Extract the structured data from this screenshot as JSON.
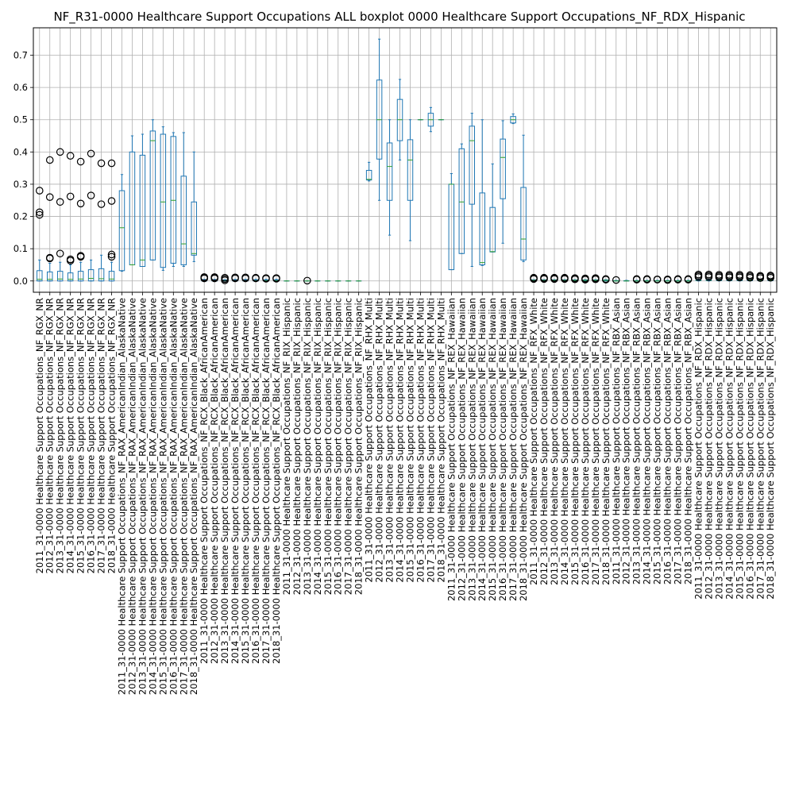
{
  "chart_data": {
    "type": "boxplot",
    "title": "NF_R31-0000 Healthcare Support Occupations ALL boxplot 0000 Healthcare Support Occupations_NF_RDX_Hispanic",
    "xlabel": "",
    "ylabel": "",
    "ylim": [
      -0.035,
      0.785
    ],
    "yticks": [
      "0.0",
      "0.1",
      "0.2",
      "0.3",
      "0.4",
      "0.5",
      "0.6",
      "0.7"
    ],
    "grid": true,
    "categories": [
      "2011_31-0000 Healthcare Support Occupations_NF_RGX_NR",
      "2012_31-0000 Healthcare Support Occupations_NF_RGX_NR",
      "2013_31-0000 Healthcare Support Occupations_NF_RGX_NR",
      "2014_31-0000 Healthcare Support Occupations_NF_RGX_NR",
      "2015_31-0000 Healthcare Support Occupations_NF_RGX_NR",
      "2016_31-0000 Healthcare Support Occupations_NF_RGX_NR",
      "2017_31-0000 Healthcare Support Occupations_NF_RGX_NR",
      "2018_31-0000 Healthcare Support Occupations_NF_RGX_NR",
      "2011_31-0000 Healthcare Support Occupations_NF_RAX_AmericanIndian_AlaskaNative",
      "2012_31-0000 Healthcare Support Occupations_NF_RAX_AmericanIndian_AlaskaNative",
      "2013_31-0000 Healthcare Support Occupations_NF_RAX_AmericanIndian_AlaskaNative",
      "2014_31-0000 Healthcare Support Occupations_NF_RAX_AmericanIndian_AlaskaNative",
      "2015_31-0000 Healthcare Support Occupations_NF_RAX_AmericanIndian_AlaskaNative",
      "2016_31-0000 Healthcare Support Occupations_NF_RAX_AmericanIndian_AlaskaNative",
      "2017_31-0000 Healthcare Support Occupations_NF_RAX_AmericanIndian_AlaskaNative",
      "2018_31-0000 Healthcare Support Occupations_NF_RAX_AmericanIndian_AlaskaNative",
      "2011_31-0000 Healthcare Support Occupations_NF_RCX_Black_AfricanAmerican",
      "2012_31-0000 Healthcare Support Occupations_NF_RCX_Black_AfricanAmerican",
      "2013_31-0000 Healthcare Support Occupations_NF_RCX_Black_AfricanAmerican",
      "2014_31-0000 Healthcare Support Occupations_NF_RCX_Black_AfricanAmerican",
      "2015_31-0000 Healthcare Support Occupations_NF_RCX_Black_AfricanAmerican",
      "2016_31-0000 Healthcare Support Occupations_NF_RCX_Black_AfricanAmerican",
      "2017_31-0000 Healthcare Support Occupations_NF_RCX_Black_AfricanAmerican",
      "2018_31-0000 Healthcare Support Occupations_NF_RCX_Black_AfricanAmerican",
      "2011_31-0000 Healthcare Support Occupations_NF_RIX_Hispanic",
      "2012_31-0000 Healthcare Support Occupations_NF_RIX_Hispanic",
      "2013_31-0000 Healthcare Support Occupations_NF_RIX_Hispanic",
      "2014_31-0000 Healthcare Support Occupations_NF_RIX_Hispanic",
      "2015_31-0000 Healthcare Support Occupations_NF_RIX_Hispanic",
      "2016_31-0000 Healthcare Support Occupations_NF_RIX_Hispanic",
      "2017_31-0000 Healthcare Support Occupations_NF_RIX_Hispanic",
      "2018_31-0000 Healthcare Support Occupations_NF_RIX_Hispanic",
      "2011_31-0000 Healthcare Support Occupations_NF_RHX_Multi",
      "2012_31-0000 Healthcare Support Occupations_NF_RHX_Multi",
      "2013_31-0000 Healthcare Support Occupations_NF_RHX_Multi",
      "2014_31-0000 Healthcare Support Occupations_NF_RHX_Multi",
      "2015_31-0000 Healthcare Support Occupations_NF_RHX_Multi",
      "2016_31-0000 Healthcare Support Occupations_NF_RHX_Multi",
      "2017_31-0000 Healthcare Support Occupations_NF_RHX_Multi",
      "2018_31-0000 Healthcare Support Occupations_NF_RHX_Multi",
      "2011_31-0000 Healthcare Support Occupations_NF_REX_Hawaiian",
      "2012_31-0000 Healthcare Support Occupations_NF_REX_Hawaiian",
      "2013_31-0000 Healthcare Support Occupations_NF_REX_Hawaiian",
      "2014_31-0000 Healthcare Support Occupations_NF_REX_Hawaiian",
      "2015_31-0000 Healthcare Support Occupations_NF_REX_Hawaiian",
      "2016_31-0000 Healthcare Support Occupations_NF_REX_Hawaiian",
      "2017_31-0000 Healthcare Support Occupations_NF_REX_Hawaiian",
      "2018_31-0000 Healthcare Support Occupations_NF_REX_Hawaiian",
      "2011_31-0000 Healthcare Support Occupations_NF_RFX_White",
      "2012_31-0000 Healthcare Support Occupations_NF_RFX_White",
      "2013_31-0000 Healthcare Support Occupations_NF_RFX_White",
      "2014_31-0000 Healthcare Support Occupations_NF_RFX_White",
      "2015_31-0000 Healthcare Support Occupations_NF_RFX_White",
      "2016_31-0000 Healthcare Support Occupations_NF_RFX_White",
      "2017_31-0000 Healthcare Support Occupations_NF_RFX_White",
      "2018_31-0000 Healthcare Support Occupations_NF_RFX_White",
      "2011_31-0000 Healthcare Support Occupations_NF_RBX_Asian",
      "2012_31-0000 Healthcare Support Occupations_NF_RBX_Asian",
      "2013_31-0000 Healthcare Support Occupations_NF_RBX_Asian",
      "2014_31-0000 Healthcare Support Occupations_NF_RBX_Asian",
      "2015_31-0000 Healthcare Support Occupations_NF_RBX_Asian",
      "2016_31-0000 Healthcare Support Occupations_NF_RBX_Asian",
      "2017_31-0000 Healthcare Support Occupations_NF_RBX_Asian",
      "2018_31-0000 Healthcare Support Occupations_NF_RBX_Asian",
      "2011_31-0000 Healthcare Support Occupations_NF_RDX_Hispanic",
      "2012_31-0000 Healthcare Support Occupations_NF_RDX_Hispanic",
      "2013_31-0000 Healthcare Support Occupations_NF_RDX_Hispanic",
      "2014_31-0000 Healthcare Support Occupations_NF_RDX_Hispanic",
      "2015_31-0000 Healthcare Support Occupations_NF_RDX_Hispanic",
      "2016_31-0000 Healthcare Support Occupations_NF_RDX_Hispanic",
      "2017_31-0000 Healthcare Support Occupations_NF_RDX_Hispanic",
      "2018_31-0000 Healthcare Support Occupations_NF_RDX_Hispanic"
    ],
    "boxes": [
      {
        "wlo": 0.0,
        "q1": 0.0,
        "med": 0.005,
        "q3": 0.032,
        "whi": 0.065,
        "fliers": [
          0.205,
          0.213,
          0.28
        ]
      },
      {
        "wlo": 0.0,
        "q1": 0.0,
        "med": 0.005,
        "q3": 0.028,
        "whi": 0.055,
        "fliers": [
          0.07,
          0.072,
          0.26,
          0.375
        ]
      },
      {
        "wlo": 0.0,
        "q1": 0.0,
        "med": 0.006,
        "q3": 0.03,
        "whi": 0.058,
        "fliers": [
          0.085,
          0.245,
          0.4
        ]
      },
      {
        "wlo": 0.0,
        "q1": 0.0,
        "med": 0.005,
        "q3": 0.025,
        "whi": 0.05,
        "fliers": [
          0.063,
          0.067,
          0.262,
          0.388
        ]
      },
      {
        "wlo": 0.0,
        "q1": 0.0,
        "med": 0.006,
        "q3": 0.03,
        "whi": 0.058,
        "fliers": [
          0.075,
          0.078,
          0.24,
          0.37
        ]
      },
      {
        "wlo": 0.0,
        "q1": 0.0,
        "med": 0.008,
        "q3": 0.035,
        "whi": 0.065,
        "fliers": [
          0.265,
          0.395
        ]
      },
      {
        "wlo": 0.0,
        "q1": 0.0,
        "med": 0.007,
        "q3": 0.038,
        "whi": 0.08,
        "fliers": [
          0.238,
          0.365
        ]
      },
      {
        "wlo": 0.0,
        "q1": 0.0,
        "med": 0.006,
        "q3": 0.03,
        "whi": 0.058,
        "fliers": [
          0.075,
          0.082,
          0.248,
          0.365
        ]
      },
      {
        "wlo": 0.03,
        "q1": 0.032,
        "med": 0.165,
        "q3": 0.28,
        "whi": 0.33,
        "fliers": []
      },
      {
        "wlo": 0.05,
        "q1": 0.05,
        "med": 0.05,
        "q3": 0.4,
        "whi": 0.45,
        "fliers": []
      },
      {
        "wlo": 0.045,
        "q1": 0.045,
        "med": 0.065,
        "q3": 0.39,
        "whi": 0.455,
        "fliers": []
      },
      {
        "wlo": 0.065,
        "q1": 0.065,
        "med": 0.435,
        "q3": 0.465,
        "whi": 0.5,
        "fliers": []
      },
      {
        "wlo": 0.033,
        "q1": 0.042,
        "med": 0.245,
        "q3": 0.455,
        "whi": 0.478,
        "fliers": []
      },
      {
        "wlo": 0.045,
        "q1": 0.055,
        "med": 0.25,
        "q3": 0.448,
        "whi": 0.46,
        "fliers": []
      },
      {
        "wlo": 0.045,
        "q1": 0.05,
        "med": 0.115,
        "q3": 0.325,
        "whi": 0.46,
        "fliers": []
      },
      {
        "wlo": 0.06,
        "q1": 0.08,
        "med": 0.085,
        "q3": 0.245,
        "whi": 0.4,
        "fliers": []
      },
      {
        "wlo": 0.0,
        "q1": 0.0,
        "med": 0.001,
        "q3": 0.003,
        "whi": 0.005,
        "fliers": [
          0.008,
          0.01,
          0.012
        ]
      },
      {
        "wlo": 0.0,
        "q1": 0.0,
        "med": 0.001,
        "q3": 0.003,
        "whi": 0.005,
        "fliers": [
          0.008,
          0.01,
          0.012
        ]
      },
      {
        "wlo": 0.0,
        "q1": 0.0,
        "med": 0.001,
        "q3": 0.003,
        "whi": 0.004,
        "fliers": [
          0.002,
          0.006,
          0.01
        ]
      },
      {
        "wlo": 0.0,
        "q1": 0.0,
        "med": 0.001,
        "q3": 0.003,
        "whi": 0.005,
        "fliers": [
          0.008,
          0.011
        ]
      },
      {
        "wlo": 0.0,
        "q1": 0.0,
        "med": 0.001,
        "q3": 0.003,
        "whi": 0.005,
        "fliers": [
          0.008,
          0.011
        ]
      },
      {
        "wlo": 0.0,
        "q1": 0.0,
        "med": 0.001,
        "q3": 0.003,
        "whi": 0.005,
        "fliers": [
          0.008,
          0.01
        ]
      },
      {
        "wlo": 0.0,
        "q1": 0.0,
        "med": 0.001,
        "q3": 0.003,
        "whi": 0.005,
        "fliers": [
          0.007,
          0.009
        ]
      },
      {
        "wlo": 0.0,
        "q1": 0.0,
        "med": 0.001,
        "q3": 0.003,
        "whi": 0.005,
        "fliers": [
          0.007,
          0.009
        ]
      },
      {
        "wlo": 0.0,
        "q1": 0.0,
        "med": 0.0,
        "q3": 0.0,
        "whi": 0.0,
        "fliers": []
      },
      {
        "wlo": 0.0,
        "q1": 0.0,
        "med": 0.0,
        "q3": 0.0,
        "whi": 0.0,
        "fliers": []
      },
      {
        "wlo": 0.0,
        "q1": 0.0,
        "med": 0.0,
        "q3": 0.0,
        "whi": 0.0,
        "fliers": [
          0.001
        ]
      },
      {
        "wlo": 0.0,
        "q1": 0.0,
        "med": 0.0,
        "q3": 0.0,
        "whi": 0.0,
        "fliers": []
      },
      {
        "wlo": 0.0,
        "q1": 0.0,
        "med": 0.0,
        "q3": 0.0,
        "whi": 0.0,
        "fliers": []
      },
      {
        "wlo": 0.0,
        "q1": 0.0,
        "med": 0.0,
        "q3": 0.0,
        "whi": 0.0,
        "fliers": []
      },
      {
        "wlo": 0.0,
        "q1": 0.0,
        "med": 0.0,
        "q3": 0.0,
        "whi": 0.0,
        "fliers": []
      },
      {
        "wlo": 0.0,
        "q1": 0.0,
        "med": 0.0,
        "q3": 0.0,
        "whi": 0.0,
        "fliers": []
      },
      {
        "wlo": 0.31,
        "q1": 0.313,
        "med": 0.315,
        "q3": 0.343,
        "whi": 0.368,
        "fliers": []
      },
      {
        "wlo": 0.25,
        "q1": 0.378,
        "med": 0.5,
        "q3": 0.623,
        "whi": 0.75,
        "fliers": []
      },
      {
        "wlo": 0.142,
        "q1": 0.25,
        "med": 0.355,
        "q3": 0.428,
        "whi": 0.5,
        "fliers": []
      },
      {
        "wlo": 0.375,
        "q1": 0.435,
        "med": 0.5,
        "q3": 0.563,
        "whi": 0.625,
        "fliers": []
      },
      {
        "wlo": 0.125,
        "q1": 0.25,
        "med": 0.375,
        "q3": 0.438,
        "whi": 0.5,
        "fliers": []
      },
      {
        "wlo": 0.5,
        "q1": 0.5,
        "med": 0.5,
        "q3": 0.5,
        "whi": 0.5,
        "fliers": []
      },
      {
        "wlo": 0.463,
        "q1": 0.48,
        "med": 0.5,
        "q3": 0.52,
        "whi": 0.538,
        "fliers": []
      },
      {
        "wlo": 0.5,
        "q1": 0.5,
        "med": 0.5,
        "q3": 0.5,
        "whi": 0.5,
        "fliers": []
      },
      {
        "wlo": 0.035,
        "q1": 0.035,
        "med": 0.3,
        "q3": 0.3,
        "whi": 0.333,
        "fliers": []
      },
      {
        "wlo": 0.085,
        "q1": 0.085,
        "med": 0.245,
        "q3": 0.41,
        "whi": 0.425,
        "fliers": []
      },
      {
        "wlo": 0.045,
        "q1": 0.238,
        "med": 0.435,
        "q3": 0.48,
        "whi": 0.52,
        "fliers": []
      },
      {
        "wlo": 0.048,
        "q1": 0.05,
        "med": 0.057,
        "q3": 0.273,
        "whi": 0.5,
        "fliers": []
      },
      {
        "wlo": 0.09,
        "q1": 0.09,
        "med": 0.091,
        "q3": 0.228,
        "whi": 0.363,
        "fliers": []
      },
      {
        "wlo": 0.117,
        "q1": 0.255,
        "med": 0.383,
        "q3": 0.44,
        "whi": 0.497,
        "fliers": []
      },
      {
        "wlo": 0.488,
        "q1": 0.49,
        "med": 0.5,
        "q3": 0.51,
        "whi": 0.518,
        "fliers": []
      },
      {
        "wlo": 0.06,
        "q1": 0.065,
        "med": 0.13,
        "q3": 0.29,
        "whi": 0.452,
        "fliers": []
      },
      {
        "wlo": 0.0,
        "q1": 0.001,
        "med": 0.002,
        "q3": 0.003,
        "whi": 0.004,
        "fliers": [
          0.006,
          0.008,
          0.01
        ]
      },
      {
        "wlo": 0.0,
        "q1": 0.001,
        "med": 0.002,
        "q3": 0.003,
        "whi": 0.004,
        "fliers": [
          0.006,
          0.008,
          0.01
        ]
      },
      {
        "wlo": 0.0,
        "q1": 0.001,
        "med": 0.002,
        "q3": 0.003,
        "whi": 0.004,
        "fliers": [
          0.006,
          0.008,
          0.01
        ]
      },
      {
        "wlo": 0.0,
        "q1": 0.001,
        "med": 0.002,
        "q3": 0.003,
        "whi": 0.004,
        "fliers": [
          0.006,
          0.008,
          0.01
        ]
      },
      {
        "wlo": 0.0,
        "q1": 0.001,
        "med": 0.002,
        "q3": 0.003,
        "whi": 0.004,
        "fliers": [
          0.005,
          0.007,
          0.009
        ]
      },
      {
        "wlo": 0.0,
        "q1": 0.001,
        "med": 0.002,
        "q3": 0.003,
        "whi": 0.004,
        "fliers": [
          0.004,
          0.006,
          0.008
        ]
      },
      {
        "wlo": 0.0,
        "q1": 0.001,
        "med": 0.002,
        "q3": 0.003,
        "whi": 0.004,
        "fliers": [
          0.005,
          0.007,
          0.009
        ]
      },
      {
        "wlo": 0.0,
        "q1": 0.001,
        "med": 0.002,
        "q3": 0.003,
        "whi": 0.004,
        "fliers": [
          0.004,
          0.006
        ]
      },
      {
        "wlo": 0.0,
        "q1": 0.0,
        "med": 0.0,
        "q3": 0.001,
        "whi": 0.002,
        "fliers": [
          0.003
        ]
      },
      {
        "wlo": 0.0,
        "q1": 0.0,
        "med": 0.0,
        "q3": 0.001,
        "whi": 0.002,
        "fliers": []
      },
      {
        "wlo": 0.0,
        "q1": 0.0,
        "med": 0.0,
        "q3": 0.001,
        "whi": 0.002,
        "fliers": [
          0.004,
          0.006
        ]
      },
      {
        "wlo": 0.0,
        "q1": 0.0,
        "med": 0.0,
        "q3": 0.001,
        "whi": 0.002,
        "fliers": [
          0.004,
          0.006
        ]
      },
      {
        "wlo": 0.0,
        "q1": 0.0,
        "med": 0.0,
        "q3": 0.001,
        "whi": 0.002,
        "fliers": [
          0.004,
          0.005
        ]
      },
      {
        "wlo": 0.0,
        "q1": 0.0,
        "med": 0.0,
        "q3": 0.001,
        "whi": 0.002,
        "fliers": [
          0.003,
          0.005
        ]
      },
      {
        "wlo": 0.0,
        "q1": 0.0,
        "med": 0.0,
        "q3": 0.001,
        "whi": 0.002,
        "fliers": [
          0.004,
          0.006
        ]
      },
      {
        "wlo": 0.0,
        "q1": 0.0,
        "med": 0.0,
        "q3": 0.001,
        "whi": 0.002,
        "fliers": [
          0.004,
          0.006
        ]
      },
      {
        "wlo": 0.0,
        "q1": 0.001,
        "med": 0.002,
        "q3": 0.004,
        "whi": 0.005,
        "fliers": [
          0.012,
          0.016,
          0.02
        ]
      },
      {
        "wlo": 0.0,
        "q1": 0.001,
        "med": 0.002,
        "q3": 0.004,
        "whi": 0.005,
        "fliers": [
          0.012,
          0.016,
          0.02
        ]
      },
      {
        "wlo": 0.0,
        "q1": 0.001,
        "med": 0.002,
        "q3": 0.004,
        "whi": 0.005,
        "fliers": [
          0.011,
          0.015,
          0.019
        ]
      },
      {
        "wlo": 0.0,
        "q1": 0.001,
        "med": 0.002,
        "q3": 0.004,
        "whi": 0.005,
        "fliers": [
          0.011,
          0.015,
          0.019
        ]
      },
      {
        "wlo": 0.0,
        "q1": 0.001,
        "med": 0.002,
        "q3": 0.004,
        "whi": 0.005,
        "fliers": [
          0.011,
          0.015,
          0.019
        ]
      },
      {
        "wlo": 0.0,
        "q1": 0.001,
        "med": 0.002,
        "q3": 0.004,
        "whi": 0.005,
        "fliers": [
          0.01,
          0.014,
          0.018
        ]
      },
      {
        "wlo": 0.0,
        "q1": 0.001,
        "med": 0.002,
        "q3": 0.004,
        "whi": 0.005,
        "fliers": [
          0.009,
          0.013,
          0.016
        ]
      },
      {
        "wlo": 0.0,
        "q1": 0.001,
        "med": 0.002,
        "q3": 0.004,
        "whi": 0.005,
        "fliers": [
          0.01,
          0.014,
          0.017
        ]
      }
    ]
  },
  "colors": {
    "box": "#1f77b4",
    "median": "#2ca02c",
    "flier": "#000000",
    "grid": "#b0b0b0",
    "axis": "#000000"
  }
}
